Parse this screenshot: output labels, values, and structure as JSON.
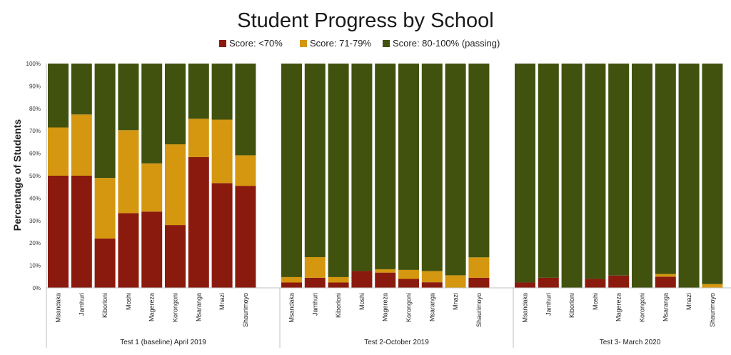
{
  "chart_data": {
    "type": "bar",
    "stacked": true,
    "title": "Student Progress by School",
    "ylabel": "Percentage of Students",
    "ylim": [
      0,
      100
    ],
    "yticks": [
      "0%",
      "10%",
      "20%",
      "30%",
      "40%",
      "50%",
      "60%",
      "70%",
      "80%",
      "90%",
      "100%"
    ],
    "legend_position": "top",
    "grid": false,
    "series": [
      {
        "name": "Score: <70%",
        "color": "#8b1a0e"
      },
      {
        "name": "Score: 71-79%",
        "color": "#d4970f"
      },
      {
        "name": "Score: 80-100% (passing)",
        "color": "#41520f"
      }
    ],
    "groups": [
      {
        "label": "Test 1 (baseline) April 2019",
        "categories": [
          "Msandaka",
          "Jamhuri",
          "Kiborloni",
          "Moshi",
          "Magereza",
          "Korongoni",
          "Msaranga",
          "Mnazi",
          "Shaurimoyo"
        ],
        "values": [
          [
            50,
            21.5,
            28.5
          ],
          [
            50,
            27.3,
            22.7
          ],
          [
            22,
            27,
            51
          ],
          [
            33.3,
            37,
            29.7
          ],
          [
            34,
            21.5,
            44.5
          ],
          [
            28,
            36,
            36
          ],
          [
            58.3,
            17.1,
            24.6
          ],
          [
            46.7,
            28.3,
            25
          ],
          [
            45.5,
            13.6,
            40.9
          ]
        ]
      },
      {
        "label": "Test 2-October 2019",
        "categories": [
          "Msandaka",
          "Jamhuri",
          "Kiborloni",
          "Moshi",
          "Magereza",
          "Korongoni",
          "Msaranga",
          "Mnazi",
          "Shaurimoyo"
        ],
        "values": [
          [
            2.4,
            2.4,
            95.2
          ],
          [
            4.5,
            9.2,
            86.3
          ],
          [
            2.4,
            2.4,
            95.2
          ],
          [
            7.5,
            0,
            92.5
          ],
          [
            6.8,
            1.5,
            91.7
          ],
          [
            4,
            4,
            92
          ],
          [
            2.5,
            5,
            92.5
          ],
          [
            0,
            5.6,
            94.4
          ],
          [
            4.5,
            9.1,
            86.4
          ]
        ]
      },
      {
        "label": "Test 3- March 2020",
        "categories": [
          "Msandaka",
          "Jamhuri",
          "Kiborloni",
          "Moshi",
          "Magereza",
          "Korongoni",
          "Msaranga",
          "Mnazi",
          "Shaurimoyo"
        ],
        "values": [
          [
            2.4,
            0,
            97.6
          ],
          [
            4.5,
            0,
            95.5
          ],
          [
            0,
            0,
            100
          ],
          [
            4,
            0,
            96
          ],
          [
            5.5,
            0,
            94.5
          ],
          [
            0,
            0,
            100
          ],
          [
            5,
            1.2,
            93.8
          ],
          [
            0,
            0,
            100
          ],
          [
            0,
            1.7,
            98.3
          ]
        ]
      }
    ]
  }
}
